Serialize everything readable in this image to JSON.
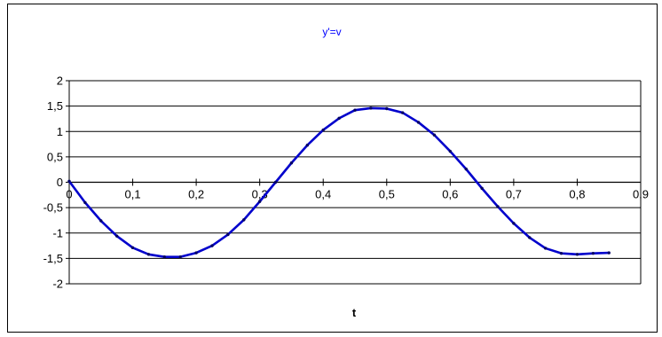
{
  "chart_data": {
    "type": "line",
    "title": "y'=v",
    "xlabel": "t",
    "ylabel": "",
    "xlim": [
      0,
      0.9
    ],
    "ylim": [
      -2,
      2
    ],
    "x_ticks": [
      "0",
      "0,1",
      "0,2",
      "0,3",
      "0,4",
      "0,5",
      "0,6",
      "0,7",
      "0,8",
      "0,9"
    ],
    "y_ticks": [
      "2",
      "1,5",
      "1",
      "0,5",
      "0",
      "-0,5",
      "-1",
      "-1,5",
      "-2"
    ],
    "grid": "horizontal",
    "legend": "none",
    "series": [
      {
        "color": "#0000cc",
        "marker": "dot",
        "x": [
          0,
          0.025,
          0.05,
          0.075,
          0.1,
          0.125,
          0.15,
          0.175,
          0.2,
          0.225,
          0.25,
          0.275,
          0.3,
          0.325,
          0.35,
          0.375,
          0.4,
          0.425,
          0.45,
          0.475,
          0.5,
          0.525,
          0.55,
          0.575,
          0.6,
          0.625,
          0.65,
          0.675,
          0.7,
          0.725,
          0.75,
          0.775,
          0.8,
          0.825,
          0.85
        ],
        "y": [
          0.02,
          -0.4,
          -0.76,
          -1.06,
          -1.29,
          -1.42,
          -1.47,
          -1.47,
          -1.39,
          -1.25,
          -1.03,
          -0.74,
          -0.38,
          0.0,
          0.38,
          0.73,
          1.03,
          1.26,
          1.42,
          1.46,
          1.45,
          1.37,
          1.18,
          0.93,
          0.61,
          0.26,
          -0.12,
          -0.48,
          -0.81,
          -1.09,
          -1.3,
          -1.4,
          -1.42,
          -1.4,
          -1.39
        ]
      }
    ]
  }
}
